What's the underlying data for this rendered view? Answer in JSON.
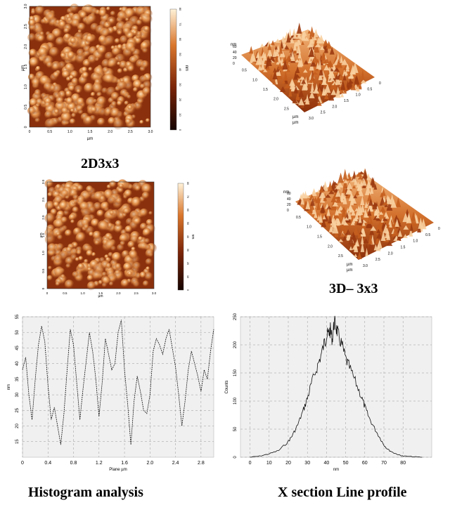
{
  "captions": {
    "top_left": "2D3x3",
    "mid_right": "3D– 3x3",
    "bottom_left": "Histogram analysis",
    "bottom_right": "X section Line profile"
  },
  "afm_2d_top": {
    "x_ticks": [
      "0",
      "0.5",
      "1.0",
      "1.5",
      "2.0",
      "2.5",
      "3.0"
    ],
    "y_ticks": [
      "0",
      "0.5",
      "1.0",
      "1.5",
      "2.0",
      "2.5",
      "3.0"
    ],
    "x_label": "µm",
    "y_label": "µm",
    "colorbar_ticks": [
      "0",
      "10",
      "20",
      "30",
      "40",
      "50",
      "60",
      "70",
      "80"
    ],
    "colorbar_label": "nm"
  },
  "afm_2d_mid": {
    "x_ticks": [
      "0",
      "0.5",
      "1.0",
      "1.5",
      "2.0",
      "2.5",
      "3.0"
    ],
    "y_ticks": [
      "0",
      "0.5",
      "1.0",
      "1.5",
      "2.0",
      "2.5",
      "3.0"
    ],
    "x_label": "µm",
    "y_label": "µm",
    "colorbar_ticks": [
      "0",
      "10",
      "20",
      "30",
      "40",
      "50",
      "60",
      "70",
      "80"
    ],
    "colorbar_label": "nm"
  },
  "afm_3d_top": {
    "z_label": "nm",
    "z_ticks": [
      "60",
      "40",
      "20",
      "0"
    ],
    "depth_ticks": [
      "0.5",
      "1.0",
      "1.5",
      "2.0",
      "2.5"
    ],
    "depth_label": "µm",
    "right_ticks": [
      "0",
      "0.5",
      "1.0",
      "1.5",
      "2.0",
      "2.5",
      "3.0"
    ],
    "right_label": "µm"
  },
  "afm_3d_mid": {
    "z_label": "nm",
    "z_ticks": [
      "60",
      "40",
      "20",
      "0"
    ],
    "depth_ticks": [
      "0.5",
      "1.0",
      "1.5",
      "2.0",
      "2.5"
    ],
    "depth_label": "µm",
    "right_ticks": [
      "0",
      "0.5",
      "1.0",
      "1.5",
      "2.0",
      "2.5",
      "3.0"
    ],
    "right_label": "µm"
  },
  "chart_data": [
    {
      "type": "line",
      "xlabel": "Plane µm",
      "ylabel": "nm",
      "xlim": [
        0,
        3.0
      ],
      "ylim": [
        10,
        55
      ],
      "x_ticks": [
        "0",
        "0.4",
        "0.8",
        "1.2",
        "1.6",
        "2.0",
        "2.4",
        "2.8"
      ],
      "y_ticks": [
        "15",
        "20",
        "25",
        "30",
        "35",
        "40",
        "45",
        "50",
        "55"
      ],
      "grid": true,
      "x": [
        0.0,
        0.05,
        0.1,
        0.15,
        0.2,
        0.25,
        0.3,
        0.35,
        0.4,
        0.45,
        0.5,
        0.55,
        0.6,
        0.65,
        0.7,
        0.75,
        0.8,
        0.85,
        0.9,
        0.95,
        1.0,
        1.05,
        1.1,
        1.15,
        1.2,
        1.25,
        1.3,
        1.35,
        1.4,
        1.45,
        1.5,
        1.55,
        1.6,
        1.65,
        1.7,
        1.75,
        1.8,
        1.85,
        1.9,
        1.95,
        2.0,
        2.05,
        2.1,
        2.15,
        2.2,
        2.25,
        2.3,
        2.35,
        2.4,
        2.45,
        2.5,
        2.55,
        2.6,
        2.65,
        2.7,
        2.75,
        2.8,
        2.85,
        2.9,
        2.95,
        3.0
      ],
      "y": [
        38,
        42,
        30,
        22,
        35,
        46,
        52,
        47,
        33,
        22,
        26,
        20,
        14,
        24,
        38,
        51,
        46,
        34,
        22,
        32,
        41,
        50,
        44,
        35,
        23,
        34,
        48,
        43,
        38,
        40,
        50,
        54,
        38,
        27,
        14,
        28,
        36,
        31,
        25,
        24,
        30,
        44,
        48,
        46,
        43,
        48,
        51,
        45,
        39,
        30,
        20,
        28,
        38,
        44,
        40,
        36,
        31,
        38,
        35,
        44,
        51
      ]
    },
    {
      "type": "line",
      "xlabel": "nm",
      "ylabel": "Counts",
      "xlim": [
        -5,
        95
      ],
      "ylim": [
        0,
        250
      ],
      "x_ticks": [
        "0",
        "10",
        "20",
        "30",
        "40",
        "50",
        "60",
        "70",
        "80"
      ],
      "y_ticks": [
        "0",
        "50",
        "100",
        "150",
        "200",
        "250"
      ],
      "grid": true,
      "x": [
        0,
        5,
        10,
        15,
        20,
        22,
        25,
        28,
        30,
        32,
        35,
        37,
        39,
        40,
        41,
        42,
        43,
        44,
        45,
        46,
        48,
        50,
        52,
        55,
        58,
        60,
        62,
        65,
        68,
        70,
        72,
        75,
        78,
        80,
        85,
        90
      ],
      "y": [
        0,
        2,
        6,
        12,
        28,
        38,
        58,
        85,
        105,
        130,
        160,
        180,
        205,
        215,
        220,
        226,
        210,
        240,
        232,
        218,
        200,
        175,
        160,
        135,
        110,
        90,
        72,
        52,
        34,
        22,
        14,
        8,
        4,
        2,
        1,
        0
      ]
    }
  ]
}
